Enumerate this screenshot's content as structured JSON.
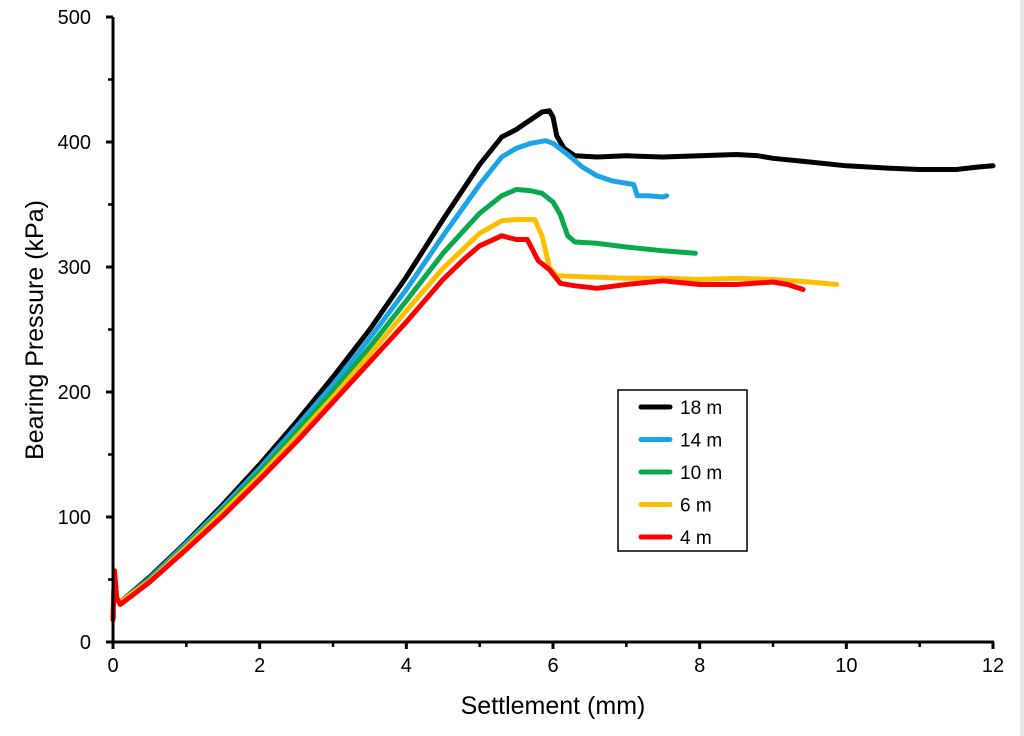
{
  "chart_data": {
    "type": "line",
    "title": "",
    "xlabel": "Settlement (mm)",
    "ylabel": "Bearing Pressure (kPa)",
    "xlim": [
      0,
      12
    ],
    "ylim": [
      0,
      500
    ],
    "x_ticks": [
      0,
      2,
      4,
      6,
      8,
      10,
      12
    ],
    "x_tick_labels": [
      "0",
      "2",
      "4",
      "6",
      "8",
      "10",
      "12"
    ],
    "x_minor_ticks": [
      1,
      3,
      5,
      7,
      9,
      11
    ],
    "y_ticks": [
      0,
      100,
      200,
      300,
      400,
      500
    ],
    "y_tick_labels": [
      "0",
      "100",
      "200",
      "300",
      "400",
      "500"
    ],
    "y_minor_ticks": [
      50,
      150,
      250,
      350,
      450
    ],
    "grid": false,
    "legend": {
      "placement": "center-right",
      "entries": [
        "18 m",
        "14 m",
        "10 m",
        "6 m",
        "4 m"
      ]
    },
    "series": [
      {
        "name": "18 m",
        "color": "#000000",
        "points": [
          [
            0,
            18
          ],
          [
            0.02,
            55
          ],
          [
            0.05,
            35
          ],
          [
            0.1,
            32
          ],
          [
            0.5,
            52
          ],
          [
            1.0,
            80
          ],
          [
            1.5,
            110
          ],
          [
            2.0,
            142
          ],
          [
            2.5,
            176
          ],
          [
            3.0,
            212
          ],
          [
            3.5,
            250
          ],
          [
            4.0,
            292
          ],
          [
            4.5,
            338
          ],
          [
            5.0,
            382
          ],
          [
            5.3,
            404
          ],
          [
            5.5,
            410
          ],
          [
            5.7,
            418
          ],
          [
            5.85,
            424
          ],
          [
            5.95,
            425
          ],
          [
            6.0,
            420
          ],
          [
            6.05,
            405
          ],
          [
            6.15,
            395
          ],
          [
            6.3,
            389
          ],
          [
            6.6,
            388
          ],
          [
            7.0,
            389
          ],
          [
            7.5,
            388
          ],
          [
            8.0,
            389
          ],
          [
            8.5,
            390
          ],
          [
            8.8,
            389
          ],
          [
            9.0,
            387
          ],
          [
            9.5,
            384
          ],
          [
            10.0,
            381
          ],
          [
            10.3,
            380
          ],
          [
            10.6,
            379
          ],
          [
            11.0,
            378
          ],
          [
            11.5,
            378
          ],
          [
            11.8,
            380
          ],
          [
            12.0,
            381
          ]
        ]
      },
      {
        "name": "14 m",
        "color": "#1aa5e6",
        "points": [
          [
            0,
            18
          ],
          [
            0.02,
            55
          ],
          [
            0.05,
            35
          ],
          [
            0.1,
            32
          ],
          [
            0.5,
            51
          ],
          [
            1.0,
            79
          ],
          [
            1.5,
            108
          ],
          [
            2.0,
            139
          ],
          [
            2.5,
            172
          ],
          [
            3.0,
            206
          ],
          [
            3.5,
            243
          ],
          [
            4.0,
            282
          ],
          [
            4.5,
            325
          ],
          [
            5.0,
            366
          ],
          [
            5.3,
            388
          ],
          [
            5.5,
            395
          ],
          [
            5.7,
            399
          ],
          [
            5.9,
            401
          ],
          [
            6.0,
            399
          ],
          [
            6.2,
            390
          ],
          [
            6.4,
            380
          ],
          [
            6.6,
            373
          ],
          [
            6.8,
            369
          ],
          [
            7.0,
            367
          ],
          [
            7.1,
            366
          ],
          [
            7.15,
            357
          ],
          [
            7.3,
            357
          ],
          [
            7.5,
            356
          ],
          [
            7.55,
            357
          ]
        ]
      },
      {
        "name": "10 m",
        "color": "#0aa84f",
        "points": [
          [
            0,
            18
          ],
          [
            0.02,
            55
          ],
          [
            0.05,
            35
          ],
          [
            0.1,
            32
          ],
          [
            0.5,
            50
          ],
          [
            1.0,
            77
          ],
          [
            1.5,
            106
          ],
          [
            2.0,
            136
          ],
          [
            2.5,
            168
          ],
          [
            3.0,
            201
          ],
          [
            3.5,
            236
          ],
          [
            4.0,
            273
          ],
          [
            4.5,
            311
          ],
          [
            5.0,
            343
          ],
          [
            5.3,
            357
          ],
          [
            5.5,
            362
          ],
          [
            5.7,
            361
          ],
          [
            5.85,
            359
          ],
          [
            6.0,
            352
          ],
          [
            6.1,
            342
          ],
          [
            6.2,
            325
          ],
          [
            6.3,
            320
          ],
          [
            6.6,
            319
          ],
          [
            7.0,
            316
          ],
          [
            7.5,
            313
          ],
          [
            7.94,
            311
          ]
        ]
      },
      {
        "name": "6 m",
        "color": "#ffbf00",
        "points": [
          [
            0,
            18
          ],
          [
            0.02,
            55
          ],
          [
            0.05,
            35
          ],
          [
            0.1,
            32
          ],
          [
            0.5,
            49
          ],
          [
            1.0,
            76
          ],
          [
            1.5,
            104
          ],
          [
            2.0,
            133
          ],
          [
            2.5,
            164
          ],
          [
            3.0,
            196
          ],
          [
            3.5,
            230
          ],
          [
            4.0,
            265
          ],
          [
            4.5,
            299
          ],
          [
            5.0,
            327
          ],
          [
            5.3,
            337
          ],
          [
            5.5,
            338
          ],
          [
            5.75,
            338
          ],
          [
            5.85,
            325
          ],
          [
            5.95,
            300
          ],
          [
            6.05,
            293
          ],
          [
            6.5,
            292
          ],
          [
            7.0,
            291
          ],
          [
            7.5,
            291
          ],
          [
            8.0,
            290
          ],
          [
            8.5,
            291
          ],
          [
            9.0,
            290
          ],
          [
            9.5,
            288
          ],
          [
            9.87,
            286
          ]
        ]
      },
      {
        "name": "4 m",
        "color": "#ff0000",
        "points": [
          [
            0,
            18
          ],
          [
            0.02,
            57
          ],
          [
            0.05,
            35
          ],
          [
            0.1,
            30
          ],
          [
            0.5,
            48
          ],
          [
            1.0,
            74
          ],
          [
            1.5,
            101
          ],
          [
            2.0,
            130
          ],
          [
            2.5,
            160
          ],
          [
            3.0,
            192
          ],
          [
            3.5,
            224
          ],
          [
            4.0,
            256
          ],
          [
            4.5,
            290
          ],
          [
            4.8,
            307
          ],
          [
            5.0,
            317
          ],
          [
            5.3,
            325
          ],
          [
            5.5,
            322
          ],
          [
            5.65,
            322
          ],
          [
            5.8,
            305
          ],
          [
            5.95,
            298
          ],
          [
            6.1,
            287
          ],
          [
            6.3,
            285
          ],
          [
            6.6,
            283
          ],
          [
            7.0,
            286
          ],
          [
            7.5,
            289
          ],
          [
            8.0,
            286
          ],
          [
            8.5,
            286
          ],
          [
            9.0,
            288
          ],
          [
            9.2,
            286
          ],
          [
            9.41,
            282
          ]
        ]
      }
    ]
  }
}
